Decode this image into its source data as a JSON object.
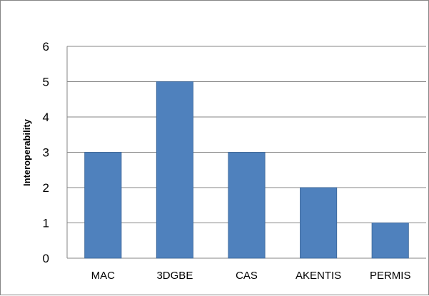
{
  "chart_data": {
    "type": "bar",
    "title": "",
    "xlabel": "",
    "ylabel": "Interoperability",
    "categories": [
      "MAC",
      "3DGBE",
      "CAS",
      "AKENTIS",
      "PERMIS"
    ],
    "values": [
      3,
      5,
      3,
      2,
      1
    ],
    "ylim": [
      0,
      6
    ],
    "yticks": [
      "0",
      "1",
      "2",
      "3",
      "4",
      "5",
      "6"
    ],
    "grid": true,
    "legend": "none",
    "bar_color": "#4F81BD",
    "bar_edge_color": "#3A6597",
    "grid_color": "#868686"
  }
}
